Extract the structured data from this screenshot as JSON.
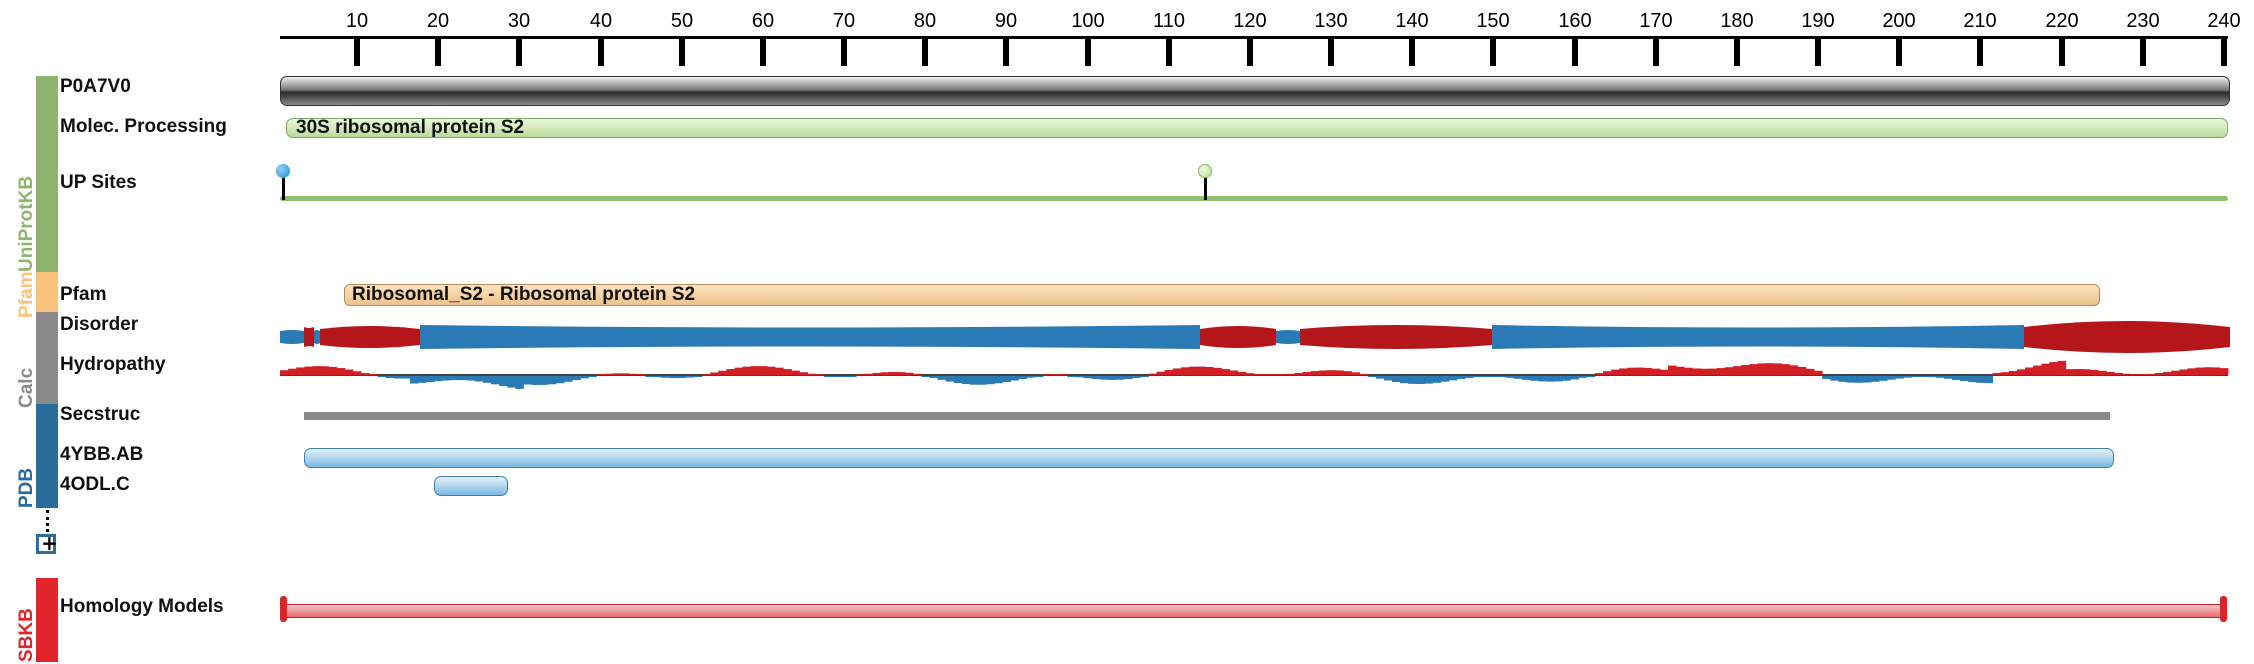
{
  "ruler": {
    "ticks": [
      "10",
      "20",
      "30",
      "40",
      "50",
      "60",
      "70",
      "80",
      "90",
      "100",
      "110",
      "120",
      "130",
      "140",
      "150",
      "160",
      "170",
      "180",
      "190",
      "200",
      "210",
      "220",
      "230",
      "240"
    ]
  },
  "groups": {
    "uniprot": {
      "label": "UniProtKB",
      "color": "#8db56d"
    },
    "pfam": {
      "label": "Pfam",
      "color": "#f9c27d"
    },
    "calc": {
      "label": "Calc",
      "color": "#8a8a8a"
    },
    "pdb": {
      "label": "PDB",
      "color": "#2a6c9c"
    },
    "sbkb": {
      "label": "SBKB",
      "color": "#e0262b"
    }
  },
  "tracks": {
    "protein": {
      "label": "P0A7V0"
    },
    "molec": {
      "label": "Molec. Processing",
      "bar_text": "30S ribosomal protein S2"
    },
    "upsites": {
      "label": "UP Sites"
    },
    "pfam": {
      "label": "Pfam",
      "bar_text": "Ribosomal_S2 - Ribosomal protein S2"
    },
    "disorder": {
      "label": "Disorder"
    },
    "hydropathy": {
      "label": "Hydropathy"
    },
    "secstruc": {
      "label": "Secstruc"
    },
    "pdb1": {
      "label": "4YBB.AB"
    },
    "pdb2": {
      "label": "4ODL.C"
    },
    "homology": {
      "label": "Homology Models"
    }
  },
  "expand": {
    "symbol": "+"
  },
  "colors": {
    "disorder_red": "#b5161c",
    "disorder_blue": "#2a7ab5",
    "hydro_red": "#d21f23",
    "hydro_blue": "#2a7ab5",
    "site_blue": "#1d8fd6",
    "site_green": "#b6e08a"
  }
}
